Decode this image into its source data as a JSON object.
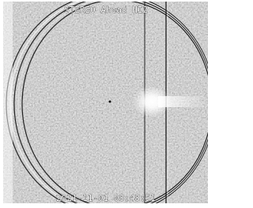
{
  "image": {
    "title": "STEREO Ahead HI2",
    "timestamp": "2021-11-01 08:48:51"
  }
}
